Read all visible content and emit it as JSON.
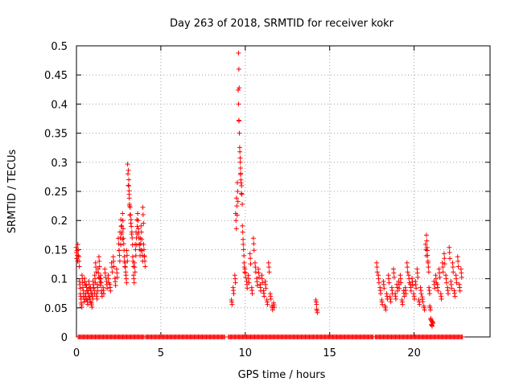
{
  "chart_data": {
    "type": "scatter",
    "title": "Day 263 of 2018, SRMTID for receiver kokr",
    "xlabel": "GPS time / hours",
    "ylabel": "SRMTID / TECUs",
    "xlim": [
      0,
      24.5
    ],
    "ylim": [
      0,
      0.5
    ],
    "x_ticks": [
      0,
      5,
      10,
      15,
      20
    ],
    "x_tick_labels": [
      "0",
      "5",
      "10",
      "15",
      "20"
    ],
    "y_ticks": [
      0,
      0.05,
      0.1,
      0.15,
      0.2,
      0.25,
      0.3,
      0.35,
      0.4,
      0.45,
      0.5
    ],
    "y_tick_labels": [
      "0",
      "0.05",
      "0.1",
      "0.15",
      "0.2",
      "0.25",
      "0.3",
      "0.35",
      "0.4",
      "0.45",
      "0.5"
    ],
    "grid": true,
    "marker": "+",
    "color": "#ff0000",
    "series": [
      {
        "name": "SRMTID",
        "points": [
          [
            0.0,
            0.145
          ],
          [
            0.05,
            0.14
          ],
          [
            0.1,
            0.15
          ],
          [
            0.15,
            0.13
          ],
          [
            0.2,
            0.09
          ],
          [
            0.25,
            0.07
          ],
          [
            0.3,
            0.055
          ],
          [
            0.35,
            0.1
          ],
          [
            0.4,
            0.08
          ],
          [
            0.45,
            0.065
          ],
          [
            0.5,
            0.095
          ],
          [
            0.55,
            0.07
          ],
          [
            0.6,
            0.085
          ],
          [
            0.65,
            0.06
          ],
          [
            0.7,
            0.075
          ],
          [
            0.75,
            0.09
          ],
          [
            0.8,
            0.065
          ],
          [
            0.85,
            0.08
          ],
          [
            0.9,
            0.055
          ],
          [
            0.95,
            0.07
          ],
          [
            1.0,
            0.09
          ],
          [
            1.05,
            0.08
          ],
          [
            1.1,
            0.1
          ],
          [
            1.15,
            0.12
          ],
          [
            1.2,
            0.07
          ],
          [
            1.25,
            0.085
          ],
          [
            1.3,
            0.11
          ],
          [
            1.35,
            0.13
          ],
          [
            1.4,
            0.095
          ],
          [
            1.45,
            0.1
          ],
          [
            1.5,
            0.075
          ],
          [
            1.6,
            0.08
          ],
          [
            1.7,
            0.11
          ],
          [
            1.8,
            0.09
          ],
          [
            1.9,
            0.1
          ],
          [
            2.0,
            0.085
          ],
          [
            2.1,
            0.12
          ],
          [
            2.2,
            0.13
          ],
          [
            2.3,
            0.095
          ],
          [
            2.4,
            0.11
          ],
          [
            2.5,
            0.16
          ],
          [
            2.55,
            0.14
          ],
          [
            2.6,
            0.17
          ],
          [
            2.65,
            0.19
          ],
          [
            2.7,
            0.18
          ],
          [
            2.75,
            0.2
          ],
          [
            2.8,
            0.16
          ],
          [
            2.85,
            0.13
          ],
          [
            2.9,
            0.12
          ],
          [
            2.95,
            0.1
          ],
          [
            3.0,
            0.14
          ],
          [
            3.05,
            0.28
          ],
          [
            3.1,
            0.27
          ],
          [
            3.12,
            0.245
          ],
          [
            3.15,
            0.225
          ],
          [
            3.2,
            0.21
          ],
          [
            3.25,
            0.19
          ],
          [
            3.3,
            0.17
          ],
          [
            3.35,
            0.13
          ],
          [
            3.4,
            0.1
          ],
          [
            3.45,
            0.12
          ],
          [
            3.5,
            0.15
          ],
          [
            3.55,
            0.17
          ],
          [
            3.6,
            0.19
          ],
          [
            3.65,
            0.2
          ],
          [
            3.7,
            0.17
          ],
          [
            3.75,
            0.15
          ],
          [
            3.8,
            0.16
          ],
          [
            3.85,
            0.18
          ],
          [
            3.9,
            0.14
          ],
          [
            3.95,
            0.21
          ],
          [
            4.0,
            0.15
          ],
          [
            4.05,
            0.13
          ],
          [
            9.2,
            0.06
          ],
          [
            9.3,
            0.08
          ],
          [
            9.4,
            0.1
          ],
          [
            9.45,
            0.2
          ],
          [
            9.5,
            0.225
          ],
          [
            9.55,
            0.25
          ],
          [
            9.6,
            0.4
          ],
          [
            9.62,
            0.46
          ],
          [
            9.65,
            0.35
          ],
          [
            9.7,
            0.3
          ],
          [
            9.72,
            0.29
          ],
          [
            9.75,
            0.265
          ],
          [
            9.8,
            0.245
          ],
          [
            9.85,
            0.18
          ],
          [
            9.9,
            0.15
          ],
          [
            9.95,
            0.12
          ],
          [
            10.0,
            0.11
          ],
          [
            10.1,
            0.09
          ],
          [
            10.2,
            0.1
          ],
          [
            10.3,
            0.135
          ],
          [
            10.4,
            0.08
          ],
          [
            10.5,
            0.16
          ],
          [
            10.6,
            0.12
          ],
          [
            10.7,
            0.095
          ],
          [
            10.8,
            0.11
          ],
          [
            10.9,
            0.085
          ],
          [
            11.0,
            0.1
          ],
          [
            11.1,
            0.075
          ],
          [
            11.2,
            0.09
          ],
          [
            11.3,
            0.06
          ],
          [
            11.4,
            0.12
          ],
          [
            11.5,
            0.07
          ],
          [
            11.6,
            0.05
          ],
          [
            11.7,
            0.055
          ],
          [
            14.2,
            0.06
          ],
          [
            14.25,
            0.045
          ],
          [
            17.8,
            0.12
          ],
          [
            17.9,
            0.1
          ],
          [
            18.0,
            0.08
          ],
          [
            18.1,
            0.06
          ],
          [
            18.2,
            0.09
          ],
          [
            18.3,
            0.05
          ],
          [
            18.4,
            0.07
          ],
          [
            18.5,
            0.1
          ],
          [
            18.6,
            0.065
          ],
          [
            18.7,
            0.08
          ],
          [
            18.8,
            0.11
          ],
          [
            18.9,
            0.07
          ],
          [
            19.0,
            0.085
          ],
          [
            19.1,
            0.09
          ],
          [
            19.2,
            0.1
          ],
          [
            19.3,
            0.06
          ],
          [
            19.4,
            0.075
          ],
          [
            19.5,
            0.08
          ],
          [
            19.6,
            0.12
          ],
          [
            19.7,
            0.1
          ],
          [
            19.8,
            0.085
          ],
          [
            19.9,
            0.095
          ],
          [
            20.0,
            0.07
          ],
          [
            20.1,
            0.09
          ],
          [
            20.2,
            0.11
          ],
          [
            20.3,
            0.06
          ],
          [
            20.4,
            0.08
          ],
          [
            20.5,
            0.065
          ],
          [
            20.6,
            0.05
          ],
          [
            20.7,
            0.15
          ],
          [
            20.75,
            0.165
          ],
          [
            20.8,
            0.14
          ],
          [
            20.85,
            0.12
          ],
          [
            20.9,
            0.08
          ],
          [
            20.95,
            0.05
          ],
          [
            21.0,
            0.03
          ],
          [
            21.05,
            0.02
          ],
          [
            21.1,
            0.025
          ],
          [
            21.2,
            0.09
          ],
          [
            21.3,
            0.1
          ],
          [
            21.4,
            0.085
          ],
          [
            21.5,
            0.11
          ],
          [
            21.6,
            0.07
          ],
          [
            21.7,
            0.12
          ],
          [
            21.8,
            0.135
          ],
          [
            21.9,
            0.1
          ],
          [
            22.0,
            0.08
          ],
          [
            22.1,
            0.145
          ],
          [
            22.2,
            0.09
          ],
          [
            22.3,
            0.12
          ],
          [
            22.4,
            0.075
          ],
          [
            22.5,
            0.1
          ],
          [
            22.6,
            0.13
          ],
          [
            22.7,
            0.085
          ],
          [
            22.8,
            0.11
          ]
        ],
        "zero_runs": [
          [
            0.1,
            4.0,
            0.35
          ],
          [
            4.1,
            8.8,
            0.12
          ],
          [
            9.0,
            17.6,
            0.15
          ],
          [
            17.7,
            22.9,
            0.35
          ]
        ]
      }
    ]
  }
}
